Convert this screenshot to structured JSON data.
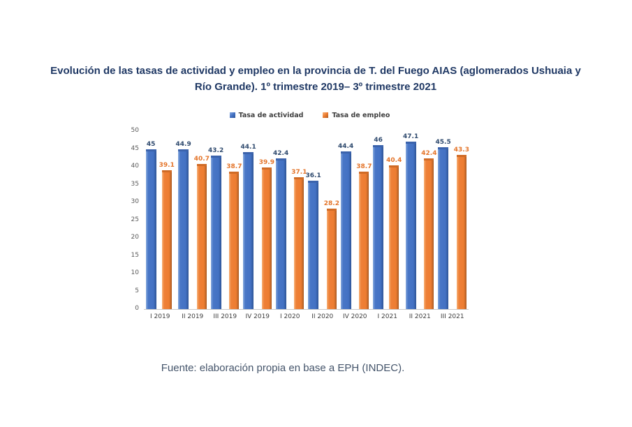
{
  "title": {
    "text": "Evolución de las tasas de actividad y empleo en la provincia de T. del Fuego AIAS (aglomerados Ushuaia y Río Grande). 1º trimestre 2019– 3º trimestre 2021"
  },
  "footer": {
    "text": "Fuente: elaboración propia en base a EPH (INDEC)."
  },
  "colors": {
    "title": "#1F3864",
    "footer": "#44546A",
    "series_blue": "#4472C4",
    "series_orange": "#ED7D31",
    "label_blue": "#2F4A6E",
    "label_orange": "#E4752B",
    "axis_text": "#595959"
  },
  "chart_data": {
    "type": "bar",
    "title": "Evolución de las tasas de actividad y empleo en la provincia de T. del Fuego AIAS (aglomerados Ushuaia y Río Grande). 1º trimestre 2019– 3º trimestre 2021",
    "categories": [
      "I 2019",
      "II 2019",
      "III 2019",
      "IV 2019",
      "I 2020",
      "II 2020",
      "IV 2020",
      "I 2021",
      "II 2021",
      "III 2021"
    ],
    "series": [
      {
        "name": "Tasa de actividad",
        "color": "#4472C4",
        "values": [
          45,
          44.9,
          43.2,
          44.1,
          42.4,
          36.1,
          44.4,
          46,
          47.1,
          45.5
        ]
      },
      {
        "name": "Tasa de empleo",
        "color": "#ED7D31",
        "values": [
          39.1,
          40.7,
          38.7,
          39.9,
          37.1,
          28.2,
          38.7,
          40.4,
          42.4,
          43.3
        ]
      }
    ],
    "xlabel": "",
    "ylabel": "",
    "ylim": [
      0,
      50
    ],
    "ytick_step": 5,
    "grid": false,
    "legend_position": "top",
    "data_labels": true
  }
}
